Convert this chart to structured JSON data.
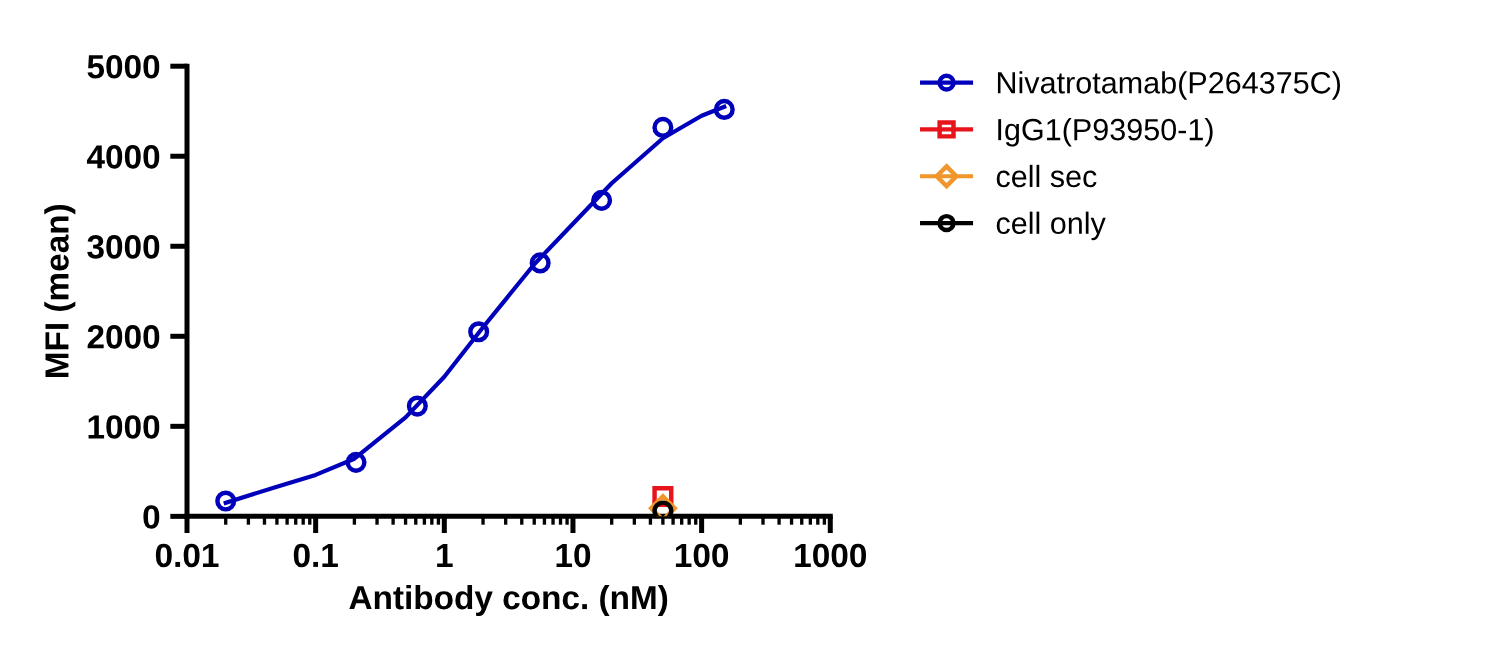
{
  "chart_data": {
    "type": "scatter",
    "xlabel": "Antibody conc. (nM)",
    "ylabel": "MFI (mean)",
    "log": "x",
    "xlim": [
      0.01,
      1000
    ],
    "xticks": [
      {
        "value": 0.01,
        "label": "0.01"
      },
      {
        "value": 0.1,
        "label": "0.1"
      },
      {
        "value": 1,
        "label": "1"
      },
      {
        "value": 10,
        "label": "10"
      },
      {
        "value": 100,
        "label": "100"
      },
      {
        "value": 1000,
        "label": "1000"
      }
    ],
    "ylim": [
      0,
      5000
    ],
    "yticks": [
      0,
      1000,
      2000,
      3000,
      4000,
      5000
    ],
    "grid": false,
    "legend": "right",
    "series": [
      {
        "name": "Nivatrotamab(P264375C)",
        "color": "#0000bb",
        "marker": "circle",
        "x": [
          0.02,
          0.206,
          0.617,
          1.85,
          5.56,
          16.7,
          50,
          150
        ],
        "values": [
          170,
          600,
          1225,
          2050,
          2815,
          3510,
          4320,
          4520
        ]
      },
      {
        "type": "line",
        "color": "#0000bb",
        "marker": "none",
        "x": [
          0.02,
          0.05,
          0.1,
          0.2,
          0.5,
          1,
          2,
          5,
          10,
          20,
          50,
          100,
          150
        ],
        "values": [
          150,
          330,
          460,
          640,
          1100,
          1550,
          2100,
          2800,
          3250,
          3700,
          4200,
          4450,
          4550
        ]
      },
      {
        "name": "IgG1(P93950-1)",
        "color": "#e8141b",
        "marker": "square",
        "x": [
          50
        ],
        "values": [
          220
        ]
      },
      {
        "name": "cell sec",
        "color": "#f0962a",
        "marker": "diamond",
        "x": [
          50
        ],
        "values": [
          90
        ]
      },
      {
        "name": "cell only",
        "color": "#000000",
        "marker": "circle",
        "x": [
          50
        ],
        "values": [
          60
        ]
      }
    ]
  }
}
